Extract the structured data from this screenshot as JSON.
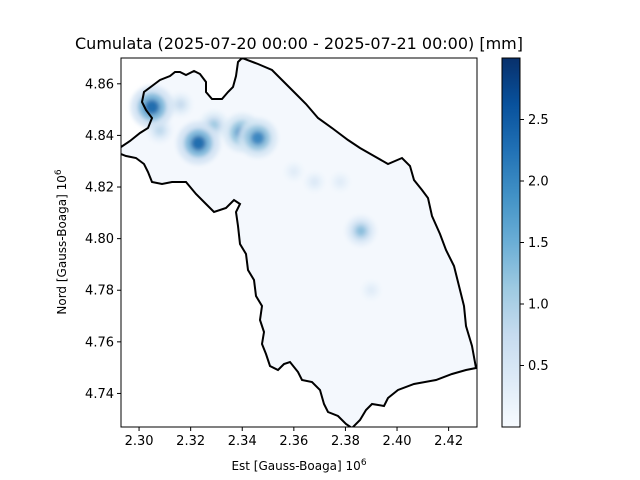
{
  "chart_data": {
    "type": "heatmap",
    "title": "Cumulata (2025-07-20 00:00 - 2025-07-21 00:00) [mm]",
    "xlabel": "Est [Gauss-Boaga] 10",
    "xlabel_exp": "6",
    "ylabel": "Nord [Gauss-Boaga] 10",
    "ylabel_exp": "6",
    "xlim": [
      2.293,
      2.431
    ],
    "ylim": [
      4.727,
      4.87
    ],
    "x_ticks": [
      2.3,
      2.32,
      2.34,
      2.36,
      2.38,
      2.4,
      2.42
    ],
    "x_tick_labels": [
      "2.30",
      "2.32",
      "2.34",
      "2.36",
      "2.38",
      "2.40",
      "2.42"
    ],
    "y_ticks": [
      4.74,
      4.76,
      4.78,
      4.8,
      4.82,
      4.84,
      4.86
    ],
    "y_tick_labels": [
      "4.74",
      "4.76",
      "4.78",
      "4.80",
      "4.82",
      "4.84",
      "4.86"
    ],
    "colormap": "Blues",
    "colorbar_range": [
      0.0,
      3.0
    ],
    "colorbar_ticks": [
      0.5,
      1.0,
      1.5,
      2.0,
      2.5
    ],
    "colorbar_tick_labels": [
      "0.5",
      "1.0",
      "1.5",
      "2.0",
      "2.5"
    ],
    "grid": false,
    "peaks": [
      {
        "x": 2.305,
        "y": 4.851,
        "value": 2.9
      },
      {
        "x": 2.323,
        "y": 4.837,
        "value": 2.9
      },
      {
        "x": 2.34,
        "y": 4.841,
        "value": 2.4
      },
      {
        "x": 2.346,
        "y": 4.839,
        "value": 2.5
      },
      {
        "x": 2.329,
        "y": 4.844,
        "value": 1.3
      },
      {
        "x": 2.386,
        "y": 4.803,
        "value": 1.5
      },
      {
        "x": 2.368,
        "y": 4.822,
        "value": 0.4
      },
      {
        "x": 2.378,
        "y": 4.822,
        "value": 0.3
      },
      {
        "x": 2.36,
        "y": 4.826,
        "value": 0.3
      },
      {
        "x": 2.39,
        "y": 4.78,
        "value": 0.3
      },
      {
        "x": 2.316,
        "y": 4.852,
        "value": 0.8
      },
      {
        "x": 2.308,
        "y": 4.842,
        "value": 0.9
      }
    ]
  },
  "colors": {
    "border": "#000000",
    "background": "#ffffff"
  }
}
